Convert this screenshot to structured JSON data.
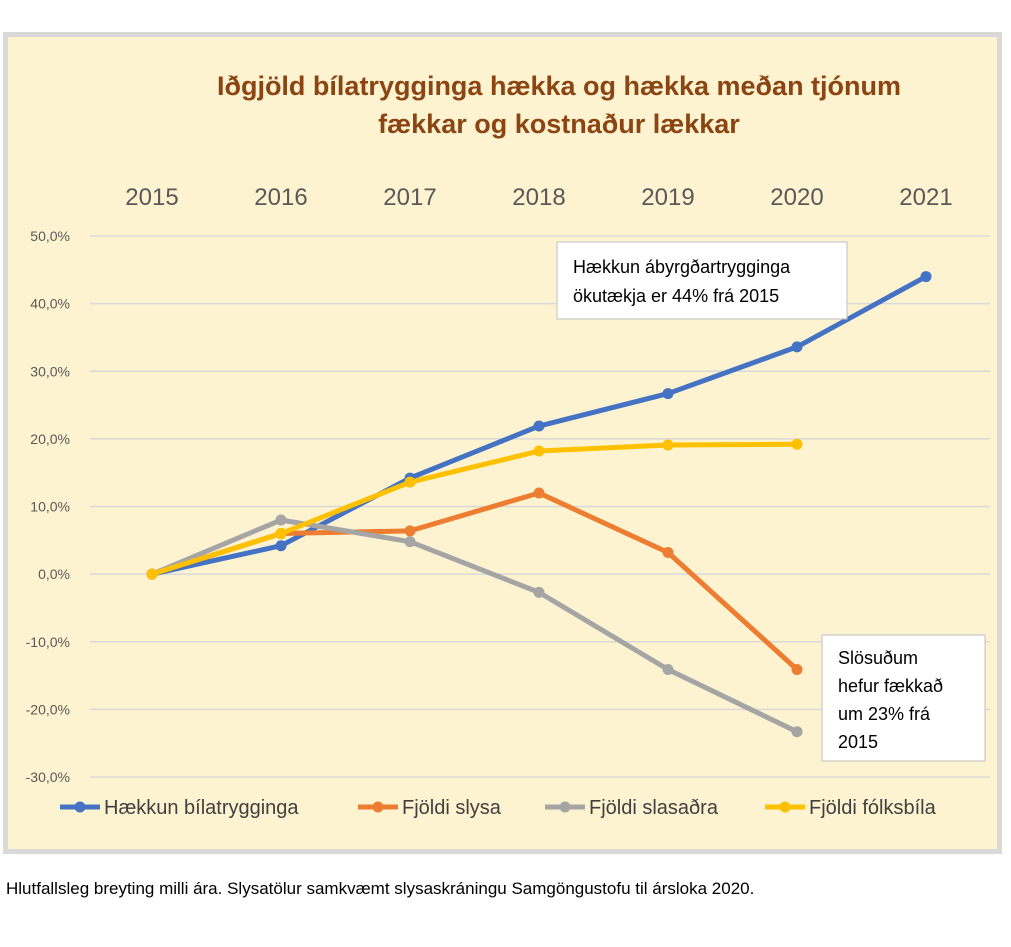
{
  "chart_data": {
    "type": "line",
    "title_lines": [
      "Iðgjöld bílatrygginga hækka og hækka meðan tjónum",
      "fækkar og kostnaður lækkar"
    ],
    "categories": [
      "2015",
      "2016",
      "2017",
      "2018",
      "2019",
      "2020",
      "2021"
    ],
    "xlabel": "",
    "ylabel": "",
    "ylim": [
      -30,
      50
    ],
    "yticks": [
      "50,0%",
      "40,0%",
      "30,0%",
      "20,0%",
      "10,0%",
      "0,0%",
      "-10,0%",
      "-20,0%",
      "-30,0%"
    ],
    "ytick_values": [
      50,
      40,
      30,
      20,
      10,
      0,
      -10,
      -20,
      -30
    ],
    "x_axis_position": "top",
    "grid": true,
    "legend_position": "bottom",
    "series": [
      {
        "name": "Hækkun bílatrygginga",
        "color": "#4472c4",
        "values": [
          0,
          4.2,
          14.2,
          21.9,
          26.7,
          33.6,
          44.0
        ]
      },
      {
        "name": "Fjöldi slysa",
        "color": "#ed7d31",
        "values": [
          0,
          6.0,
          6.4,
          12.0,
          3.2,
          -14.1,
          null
        ]
      },
      {
        "name": "Fjöldi slasaðra",
        "color": "#a5a5a5",
        "values": [
          0,
          8.0,
          4.8,
          -2.7,
          -14.1,
          -23.3,
          null
        ]
      },
      {
        "name": "Fjöldi fólksbíla",
        "color": "#ffc000",
        "values": [
          0,
          6.0,
          13.6,
          18.2,
          19.1,
          19.2,
          null
        ]
      }
    ],
    "annotations": [
      {
        "id": "annotation-insurance",
        "lines": [
          "Hækkun ábyrgðartrygginga",
          "ökutækja er 44% frá 2015"
        ]
      },
      {
        "id": "annotation-injured",
        "lines": [
          "Slösuðum",
          "hefur fækkað",
          "um 23% frá",
          "2015"
        ]
      }
    ]
  },
  "caption": "Hlutfallsleg breyting milli ára. Slysatölur samkvæmt slysaskráningu Samgöngustofu til ársloka 2020."
}
